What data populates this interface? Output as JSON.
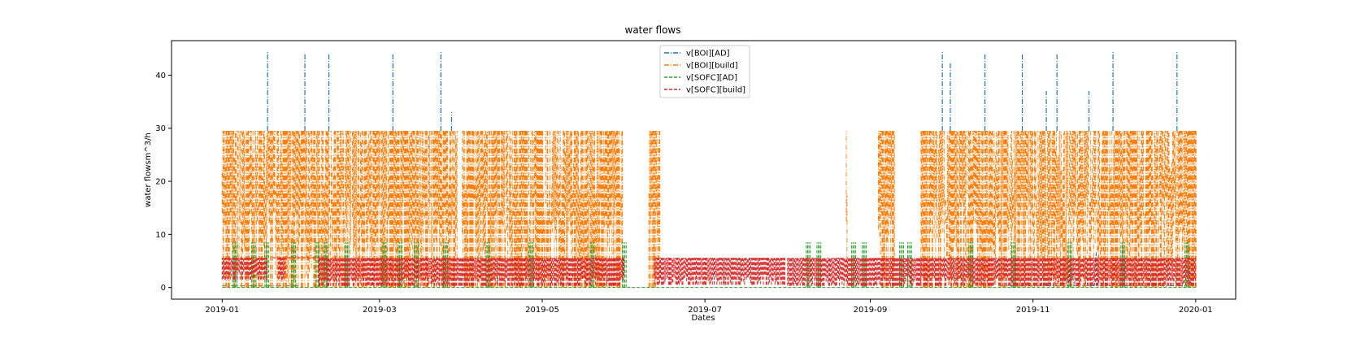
{
  "chart_data": {
    "type": "line",
    "title": "water flows",
    "xlabel": "Dates",
    "ylabel": "water flowsm^3/h",
    "xlim": [
      "2018-12-13",
      "2020-01-16"
    ],
    "ylim": [
      -2.2,
      46.5
    ],
    "x_ticks": [
      "2019-01",
      "2019-03",
      "2019-05",
      "2019-07",
      "2019-09",
      "2019-11",
      "2020-01"
    ],
    "y_ticks": [
      0,
      10,
      20,
      30,
      40
    ],
    "grid": false,
    "legend_position": "top-center",
    "series": [
      {
        "name": "v[BOI][AD]",
        "color": "#1f77b4",
        "linestyle": "dashdot",
        "segments": [
          {
            "start": "2019-01-01",
            "end": "2019-01-31",
            "baseline": 0.3,
            "peak": 18
          },
          {
            "start": "2019-10-20",
            "end": "2019-12-31",
            "baseline": 0.3,
            "peak": 12
          }
        ],
        "spikes": [
          {
            "x": "2019-01-18",
            "y": 44.5
          },
          {
            "x": "2019-02-01",
            "y": 44.0
          },
          {
            "x": "2019-02-10",
            "y": 44.0
          },
          {
            "x": "2019-03-06",
            "y": 44.0
          },
          {
            "x": "2019-03-24",
            "y": 44.5
          },
          {
            "x": "2019-03-28",
            "y": 33.0
          },
          {
            "x": "2019-09-28",
            "y": 44.5
          },
          {
            "x": "2019-10-01",
            "y": 42.5
          },
          {
            "x": "2019-10-14",
            "y": 44.0
          },
          {
            "x": "2019-10-28",
            "y": 44.0
          },
          {
            "x": "2019-11-06",
            "y": 37.0
          },
          {
            "x": "2019-11-10",
            "y": 44.0
          },
          {
            "x": "2019-11-22",
            "y": 37.0
          },
          {
            "x": "2019-12-01",
            "y": 44.5
          },
          {
            "x": "2019-12-25",
            "y": 44.5
          }
        ]
      },
      {
        "name": "v[BOI][build]",
        "color": "#ff7f0e",
        "linestyle": "dashdot",
        "segments": [
          {
            "start": "2019-01-01",
            "end": "2019-03-30",
            "baseline": 0,
            "peak": 29.5
          },
          {
            "start": "2019-04-01",
            "end": "2019-05-31",
            "baseline": 0,
            "peak": 29.5
          },
          {
            "start": "2019-06-10",
            "end": "2019-06-14",
            "baseline": 0,
            "peak": 29.5
          },
          {
            "start": "2019-08-23",
            "end": "2019-08-23",
            "baseline": 0,
            "peak": 29.5
          },
          {
            "start": "2019-09-04",
            "end": "2019-09-10",
            "baseline": 0,
            "peak": 29.5
          },
          {
            "start": "2019-09-20",
            "end": "2020-01-01",
            "baseline": 0,
            "peak": 29.5
          }
        ]
      },
      {
        "name": "v[SOFC][AD]",
        "color": "#2ca02c",
        "linestyle": "dashed",
        "baseline": 0,
        "bursts": [
          {
            "x": "2019-01-05",
            "y": 8.5
          },
          {
            "x": "2019-01-12",
            "y": 8.5
          },
          {
            "x": "2019-01-17",
            "y": 8.5
          },
          {
            "x": "2019-01-27",
            "y": 8.5
          },
          {
            "x": "2019-02-05",
            "y": 8.5
          },
          {
            "x": "2019-02-08",
            "y": 8.5
          },
          {
            "x": "2019-02-16",
            "y": 8.5
          },
          {
            "x": "2019-03-02",
            "y": 8.5
          },
          {
            "x": "2019-03-08",
            "y": 8.5
          },
          {
            "x": "2019-03-14",
            "y": 8.5
          },
          {
            "x": "2019-03-25",
            "y": 8.5
          },
          {
            "x": "2019-04-10",
            "y": 8.5
          },
          {
            "x": "2019-04-26",
            "y": 8.5
          },
          {
            "x": "2019-05-19",
            "y": 8.5
          },
          {
            "x": "2019-05-31",
            "y": 8.5
          },
          {
            "x": "2019-08-08",
            "y": 8.5
          },
          {
            "x": "2019-08-12",
            "y": 8.5
          },
          {
            "x": "2019-08-25",
            "y": 8.5
          },
          {
            "x": "2019-08-29",
            "y": 8.5
          },
          {
            "x": "2019-09-12",
            "y": 8.5
          },
          {
            "x": "2019-09-15",
            "y": 8.5
          },
          {
            "x": "2019-10-08",
            "y": 8.5
          },
          {
            "x": "2019-10-24",
            "y": 8.5
          },
          {
            "x": "2019-11-14",
            "y": 8.5
          },
          {
            "x": "2019-12-04",
            "y": 8.5
          },
          {
            "x": "2019-12-28",
            "y": 8.5
          }
        ]
      },
      {
        "name": "v[SOFC][build]",
        "color": "#d62728",
        "linestyle": "dashed",
        "segments": [
          {
            "start": "2019-01-01",
            "end": "2019-01-18",
            "low": 1.5,
            "high": 5.6
          },
          {
            "start": "2019-01-22",
            "end": "2019-01-25",
            "low": 1.5,
            "high": 5.6
          },
          {
            "start": "2019-02-06",
            "end": "2019-06-01",
            "low": 0.3,
            "high": 5.6
          },
          {
            "start": "2019-06-12",
            "end": "2019-07-31",
            "low": 0.5,
            "high": 5.6
          },
          {
            "start": "2019-08-01",
            "end": "2019-09-20",
            "low": 0.3,
            "high": 5.6
          },
          {
            "start": "2019-09-20",
            "end": "2020-01-01",
            "low": 0.3,
            "high": 5.6
          }
        ],
        "plateau": {
          "start": "2019-01-20",
          "end": "2019-02-08",
          "y": 5.6
        }
      }
    ]
  }
}
